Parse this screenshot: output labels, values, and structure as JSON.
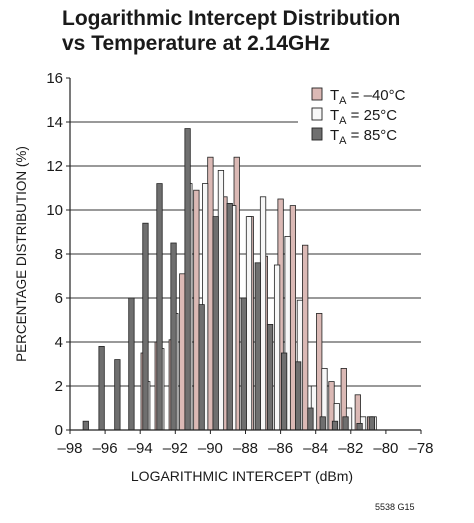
{
  "chart_data": {
    "type": "bar",
    "title_lines": [
      "Logarithmic Intercept Distribution",
      "vs Temperature at 2.14GHz"
    ],
    "xlabel": "LOGARITHMIC INTERCEPT (dBm)",
    "ylabel": "PERCENTAGE DISTRIBUTION (%)",
    "xlim": [
      -98,
      -78
    ],
    "ylim": [
      0,
      16
    ],
    "xticks": [
      -98,
      -96,
      -94,
      -92,
      -90,
      -88,
      -86,
      -84,
      -82,
      -80,
      -78
    ],
    "xtick_labels": [
      "–98",
      "–96",
      "–94",
      "–92",
      "–90",
      "–88",
      "–86",
      "–84",
      "–82",
      "–80",
      "–78"
    ],
    "yticks": [
      0,
      2,
      4,
      6,
      8,
      10,
      12,
      14,
      16
    ],
    "grid": "horizontal",
    "legend_position": "top-right",
    "bin_width": 0.5,
    "series": [
      {
        "name_main": "T",
        "name_sub": "A",
        "name_rest": " = –40°C",
        "color": "#dbb9b5",
        "points": [
          [
            -93.8,
            3.5
          ],
          [
            -93.0,
            4.0
          ],
          [
            -92.2,
            4.1
          ],
          [
            -91.6,
            7.1
          ],
          [
            -90.8,
            10.9
          ],
          [
            -90.0,
            12.4
          ],
          [
            -89.2,
            10.6
          ],
          [
            -88.5,
            12.4
          ],
          [
            -87.7,
            9.7
          ],
          [
            -86.9,
            7.9
          ],
          [
            -86.0,
            10.5
          ],
          [
            -85.3,
            10.2
          ],
          [
            -84.6,
            8.4
          ],
          [
            -83.8,
            5.3
          ],
          [
            -83.1,
            2.2
          ],
          [
            -82.4,
            2.8
          ],
          [
            -81.6,
            1.6
          ],
          [
            -80.9,
            0.6
          ]
        ]
      },
      {
        "name_main": "T",
        "name_sub": "A",
        "name_rest": " = 25°C",
        "color": "#f7f7f7",
        "points": [
          [
            -93.6,
            2.2
          ],
          [
            -92.8,
            3.7
          ],
          [
            -92.0,
            5.3
          ],
          [
            -91.2,
            11.2
          ],
          [
            -90.3,
            11.2
          ],
          [
            -89.4,
            11.8
          ],
          [
            -88.7,
            10.2
          ],
          [
            -87.8,
            9.7
          ],
          [
            -87.0,
            10.6
          ],
          [
            -86.2,
            7.5
          ],
          [
            -85.6,
            8.8
          ],
          [
            -84.9,
            5.9
          ],
          [
            -84.1,
            2.0
          ],
          [
            -83.5,
            2.8
          ],
          [
            -82.8,
            1.2
          ],
          [
            -82.1,
            1.0
          ],
          [
            -81.3,
            0.6
          ],
          [
            -80.7,
            0.6
          ]
        ]
      },
      {
        "name_main": "T",
        "name_sub": "A",
        "name_rest": " = 85°C",
        "color": "#6f6f6f",
        "points": [
          [
            -97.1,
            0.4
          ],
          [
            -96.2,
            3.8
          ],
          [
            -95.3,
            3.2
          ],
          [
            -94.5,
            6.0
          ],
          [
            -93.7,
            9.4
          ],
          [
            -92.9,
            11.2
          ],
          [
            -92.1,
            8.5
          ],
          [
            -91.3,
            13.7
          ],
          [
            -90.5,
            5.7
          ],
          [
            -89.7,
            9.7
          ],
          [
            -88.9,
            10.3
          ],
          [
            -88.1,
            6.0
          ],
          [
            -87.3,
            7.6
          ],
          [
            -86.6,
            4.8
          ],
          [
            -85.8,
            3.5
          ],
          [
            -85.0,
            3.1
          ],
          [
            -84.3,
            1.0
          ],
          [
            -83.6,
            0.6
          ],
          [
            -82.9,
            0.4
          ],
          [
            -82.3,
            0.6
          ],
          [
            -81.5,
            0.3
          ],
          [
            -80.8,
            0.6
          ]
        ]
      }
    ]
  },
  "figure_id": "5538 G15"
}
